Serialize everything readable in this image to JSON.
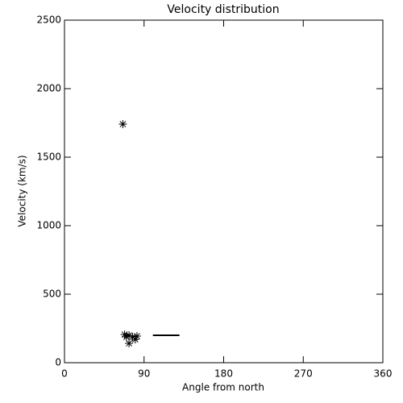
{
  "chart_data": {
    "type": "scatter",
    "title": "Velocity distribution",
    "xlabel": "Angle from north",
    "ylabel": "Velocity (km/s)",
    "x": [
      66,
      68,
      70,
      73,
      77,
      82,
      73,
      80
    ],
    "values": [
      1741,
      206,
      188,
      200,
      188,
      194,
      141,
      170
    ],
    "line_x": [
      100,
      130
    ],
    "line_values": [
      200,
      200
    ],
    "color": "#000000",
    "xlim": [
      0,
      360
    ],
    "xticks": [
      0,
      90,
      180,
      270,
      360
    ],
    "ylim": [
      0,
      2500
    ],
    "yticks": [
      0,
      500,
      1000,
      1500,
      2000,
      2500
    ]
  }
}
